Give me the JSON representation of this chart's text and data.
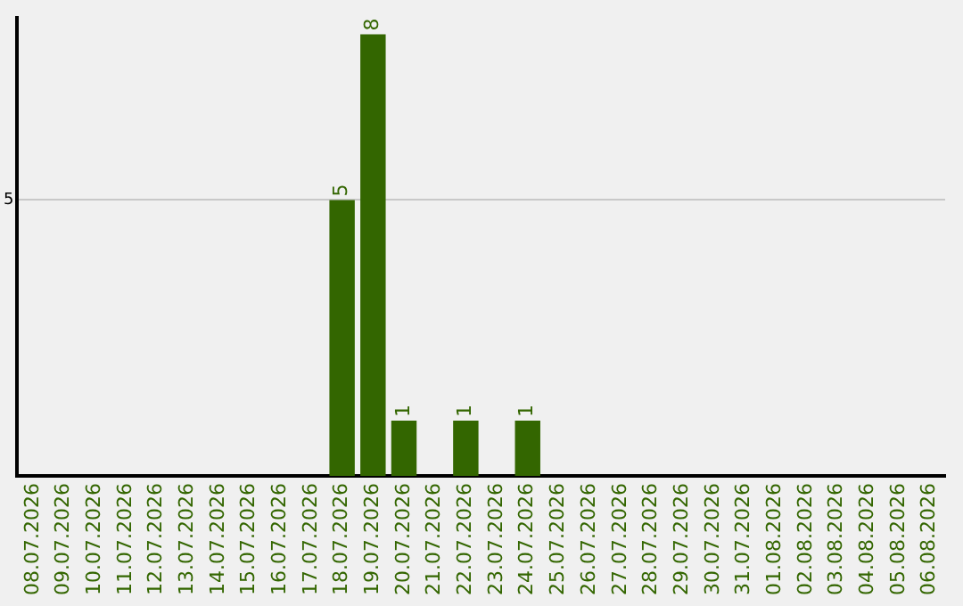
{
  "chart_data": {
    "type": "bar",
    "categories": [
      "08.07.2026",
      "09.07.2026",
      "10.07.2026",
      "11.07.2026",
      "12.07.2026",
      "13.07.2026",
      "14.07.2026",
      "15.07.2026",
      "16.07.2026",
      "17.07.2026",
      "18.07.2026",
      "19.07.2026",
      "20.07.2026",
      "21.07.2026",
      "22.07.2026",
      "23.07.2026",
      "24.07.2026",
      "25.07.2026",
      "26.07.2026",
      "27.07.2026",
      "28.07.2026",
      "29.07.2026",
      "30.07.2026",
      "31.07.2026",
      "01.08.2026",
      "02.08.2026",
      "03.08.2026",
      "04.08.2026",
      "05.08.2026",
      "06.08.2026"
    ],
    "values": [
      0,
      0,
      0,
      0,
      0,
      0,
      0,
      0,
      0,
      0,
      5,
      8,
      1,
      0,
      1,
      0,
      1,
      0,
      0,
      0,
      0,
      0,
      0,
      0,
      0,
      0,
      0,
      0,
      0,
      0
    ],
    "value_labels": [
      null,
      null,
      null,
      null,
      null,
      null,
      null,
      null,
      null,
      null,
      "5",
      "8",
      "1",
      null,
      "1",
      null,
      "1",
      null,
      null,
      null,
      null,
      null,
      null,
      null,
      null,
      null,
      null,
      null,
      null,
      null
    ],
    "color": "#336600",
    "ylim": [
      0,
      8.3
    ],
    "yticks": [
      5
    ],
    "grid": "y",
    "legend": false
  }
}
